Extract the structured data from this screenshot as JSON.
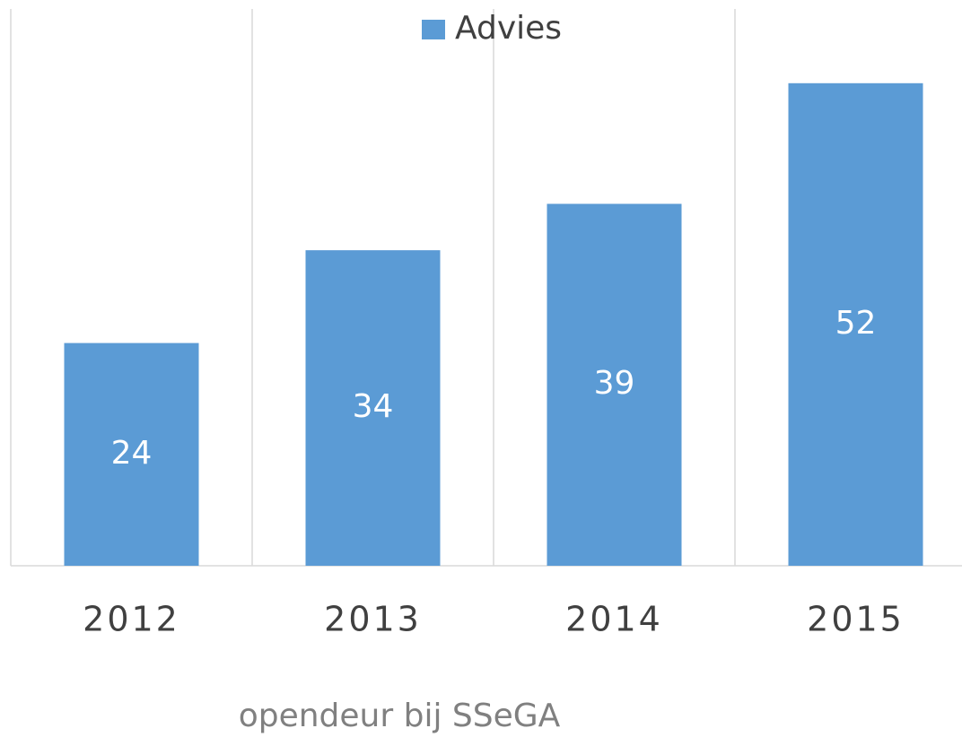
{
  "chart_data": {
    "type": "bar",
    "categories": [
      "2012",
      "2013",
      "2014",
      "2015"
    ],
    "series": [
      {
        "name": "Advies",
        "color": "#5b9bd5",
        "values": [
          24,
          34,
          39,
          52
        ]
      }
    ],
    "xlabel": "opendeur bij SSeGA",
    "ylim": [
      0,
      60
    ],
    "legend": "top",
    "data_labels": true
  }
}
